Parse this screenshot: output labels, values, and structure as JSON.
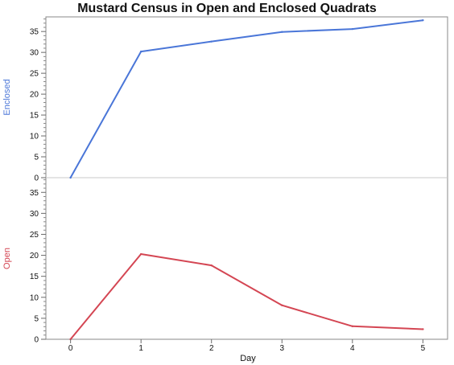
{
  "chart_data": {
    "type": "line",
    "title": "Mustard Census in Open and Enclosed Quadrats",
    "xlabel": "Day",
    "x": [
      0,
      1,
      2,
      3,
      4,
      5
    ],
    "xticks": [
      "0",
      "1",
      "2",
      "3",
      "4",
      "5"
    ],
    "xlim": [
      -0.35,
      5.35
    ],
    "grid": false,
    "panels": [
      {
        "name": "Enclosed",
        "ylabel": "Enclosed",
        "color": "#4a76d8",
        "ylim": [
          0,
          38.5
        ],
        "yticks": [
          "0",
          "5",
          "10",
          "15",
          "20",
          "25",
          "30",
          "35"
        ],
        "values": [
          0,
          30.2,
          32.6,
          34.9,
          35.6,
          37.7
        ]
      },
      {
        "name": "Open",
        "ylabel": "Open",
        "color": "#d44653",
        "ylim": [
          0,
          38.5
        ],
        "yticks": [
          "0",
          "5",
          "10",
          "15",
          "20",
          "25",
          "30",
          "35"
        ],
        "values": [
          0,
          20.3,
          17.6,
          8.1,
          3.1,
          2.4
        ]
      }
    ]
  }
}
